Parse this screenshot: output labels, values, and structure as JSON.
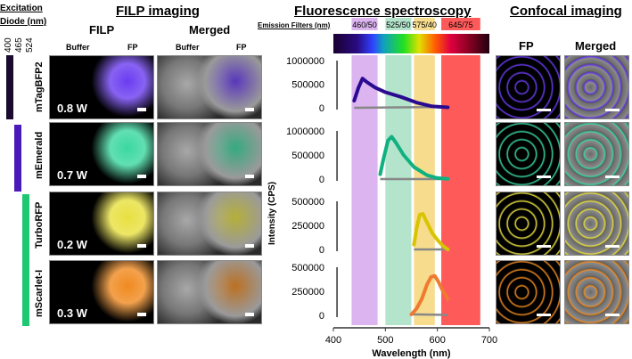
{
  "left": {
    "diode_title": "Excitation Diode (nm)",
    "diodes": [
      "400",
      "465",
      "524"
    ],
    "title": "FILP imaging",
    "col_groups": [
      "FILP",
      "Merged"
    ],
    "cols": [
      "Buffer",
      "FP",
      "Buffer",
      "FP"
    ],
    "rows": [
      {
        "name": "mTagBFP2",
        "power": "0.8 W",
        "color": "#6a3cf0"
      },
      {
        "name": "mEmerald",
        "power": "0.7 W",
        "color": "#3ad8a0"
      },
      {
        "name": "TurboRFP",
        "power": "0.2 W",
        "color": "#e8e040"
      },
      {
        "name": "mScarlet-I",
        "power": "0.3 W",
        "color": "#f08a20"
      }
    ],
    "diode_colors": [
      "#1a0a30",
      "#4a1ab8",
      "#1ec870"
    ]
  },
  "right": {
    "title": "Confocal imaging",
    "cols": [
      "FP",
      "Merged"
    ]
  },
  "chart_data": {
    "type": "line",
    "title": "Fluorescence spectroscopy",
    "filters_label": "Emission Filters (nm)",
    "filters": [
      {
        "label": "460/50",
        "range": [
          435,
          485
        ],
        "color": "#dcb4f0"
      },
      {
        "label": "525/50",
        "range": [
          500,
          550
        ],
        "color": "#b4e4cc"
      },
      {
        "label": "575/40",
        "range": [
          555,
          595
        ],
        "color": "#f6dc8c"
      },
      {
        "label": "645/75",
        "range": [
          607.5,
          682.5
        ],
        "color": "#ff5a5a"
      }
    ],
    "xlabel": "Wavelength (nm)",
    "ylabel": "Intensity (CPS)",
    "xlim": [
      400,
      700
    ],
    "xticks": [
      "400",
      "500",
      "600",
      "700"
    ],
    "panels": [
      {
        "ylim": [
          0,
          1000000
        ],
        "yticks": [
          "1000000",
          "500000",
          "0"
        ],
        "color": "#2a0a90",
        "fp": {
          "x": [
            440,
            448,
            456,
            465,
            480,
            500,
            530,
            560,
            590,
            620
          ],
          "y": [
            150000,
            420000,
            620000,
            540000,
            430000,
            330000,
            230000,
            110000,
            30000,
            10000
          ]
        },
        "buffer": {
          "x": [
            440,
            620
          ],
          "y": [
            0,
            20000
          ]
        }
      },
      {
        "ylim": [
          0,
          1000000
        ],
        "yticks": [
          "1000000",
          "500000",
          "0"
        ],
        "color": "#10b080",
        "fp": {
          "x": [
            490,
            497,
            505,
            512,
            520,
            535,
            555,
            580,
            600,
            620
          ],
          "y": [
            100000,
            450000,
            800000,
            880000,
            760000,
            500000,
            250000,
            80000,
            20000,
            5000
          ]
        },
        "buffer": {
          "x": [
            490,
            620
          ],
          "y": [
            0,
            0
          ]
        }
      },
      {
        "ylim": [
          0,
          500000
        ],
        "yticks": [
          "500000",
          "250000",
          "0"
        ],
        "color": "#d8c400",
        "fp": {
          "x": [
            555,
            560,
            566,
            572,
            580,
            590,
            600,
            610,
            620
          ],
          "y": [
            50000,
            220000,
            360000,
            370000,
            280000,
            170000,
            100000,
            40000,
            0
          ]
        },
        "buffer": {
          "x": [
            555,
            620
          ],
          "y": [
            0,
            0
          ]
        }
      },
      {
        "ylim": [
          0,
          500000
        ],
        "yticks": [
          "500000",
          "250000",
          "0"
        ],
        "color": "#f07a30",
        "fp": {
          "x": [
            550,
            560,
            570,
            580,
            588,
            595,
            602,
            610,
            620
          ],
          "y": [
            10000,
            70000,
            170000,
            320000,
            400000,
            410000,
            350000,
            260000,
            170000
          ]
        },
        "buffer": {
          "x": [
            550,
            620
          ],
          "y": [
            10000,
            5000
          ]
        }
      }
    ]
  }
}
